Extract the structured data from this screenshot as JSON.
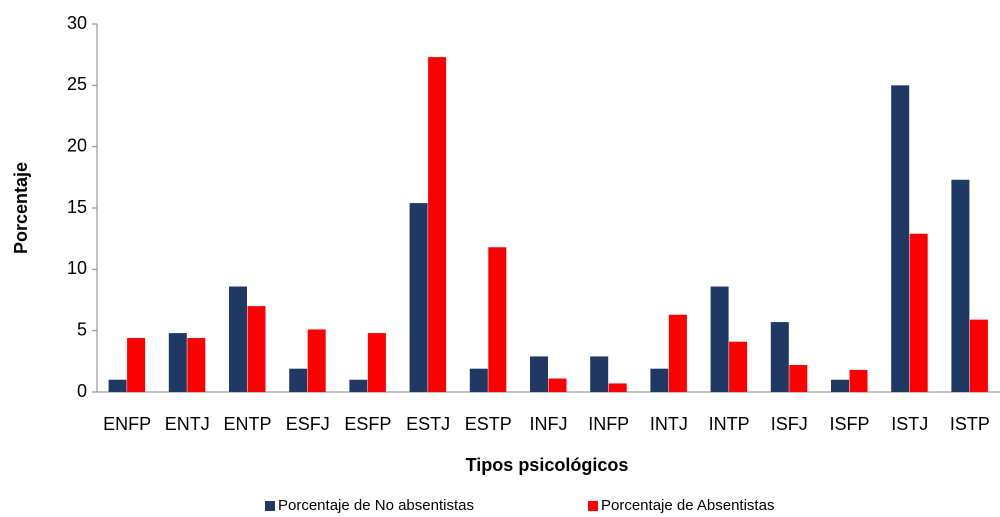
{
  "chart_data": {
    "type": "bar",
    "x_label": "Tipos psicológicos",
    "y_label": "Porcentaje",
    "categories": [
      "ENFP",
      "ENTJ",
      "ENTP",
      "ESFJ",
      "ESFP",
      "ESTJ",
      "ESTP",
      "INFJ",
      "INFP",
      "INTJ",
      "INTP",
      "ISFJ",
      "ISFP",
      "ISTJ",
      "ISTP"
    ],
    "series": [
      {
        "name": "Porcentaje de No absentistas",
        "color": "#1f3864",
        "values": [
          1,
          4.8,
          8.6,
          1.9,
          1,
          15.4,
          1.9,
          2.9,
          2.9,
          1.9,
          8.6,
          5.7,
          1,
          25,
          17.3
        ]
      },
      {
        "name": "Porcentaje de Absentistas",
        "color": "#ff0000",
        "values": [
          4.4,
          4.4,
          7.0,
          5.1,
          4.8,
          27.3,
          11.8,
          1.1,
          0.7,
          6.3,
          4.1,
          2.2,
          1.8,
          12.9,
          5.9
        ]
      }
    ],
    "ylim": [
      0,
      30
    ],
    "yticks": [
      0,
      5,
      10,
      15,
      20,
      25,
      30
    ],
    "grid": false,
    "legend": "bottom"
  }
}
